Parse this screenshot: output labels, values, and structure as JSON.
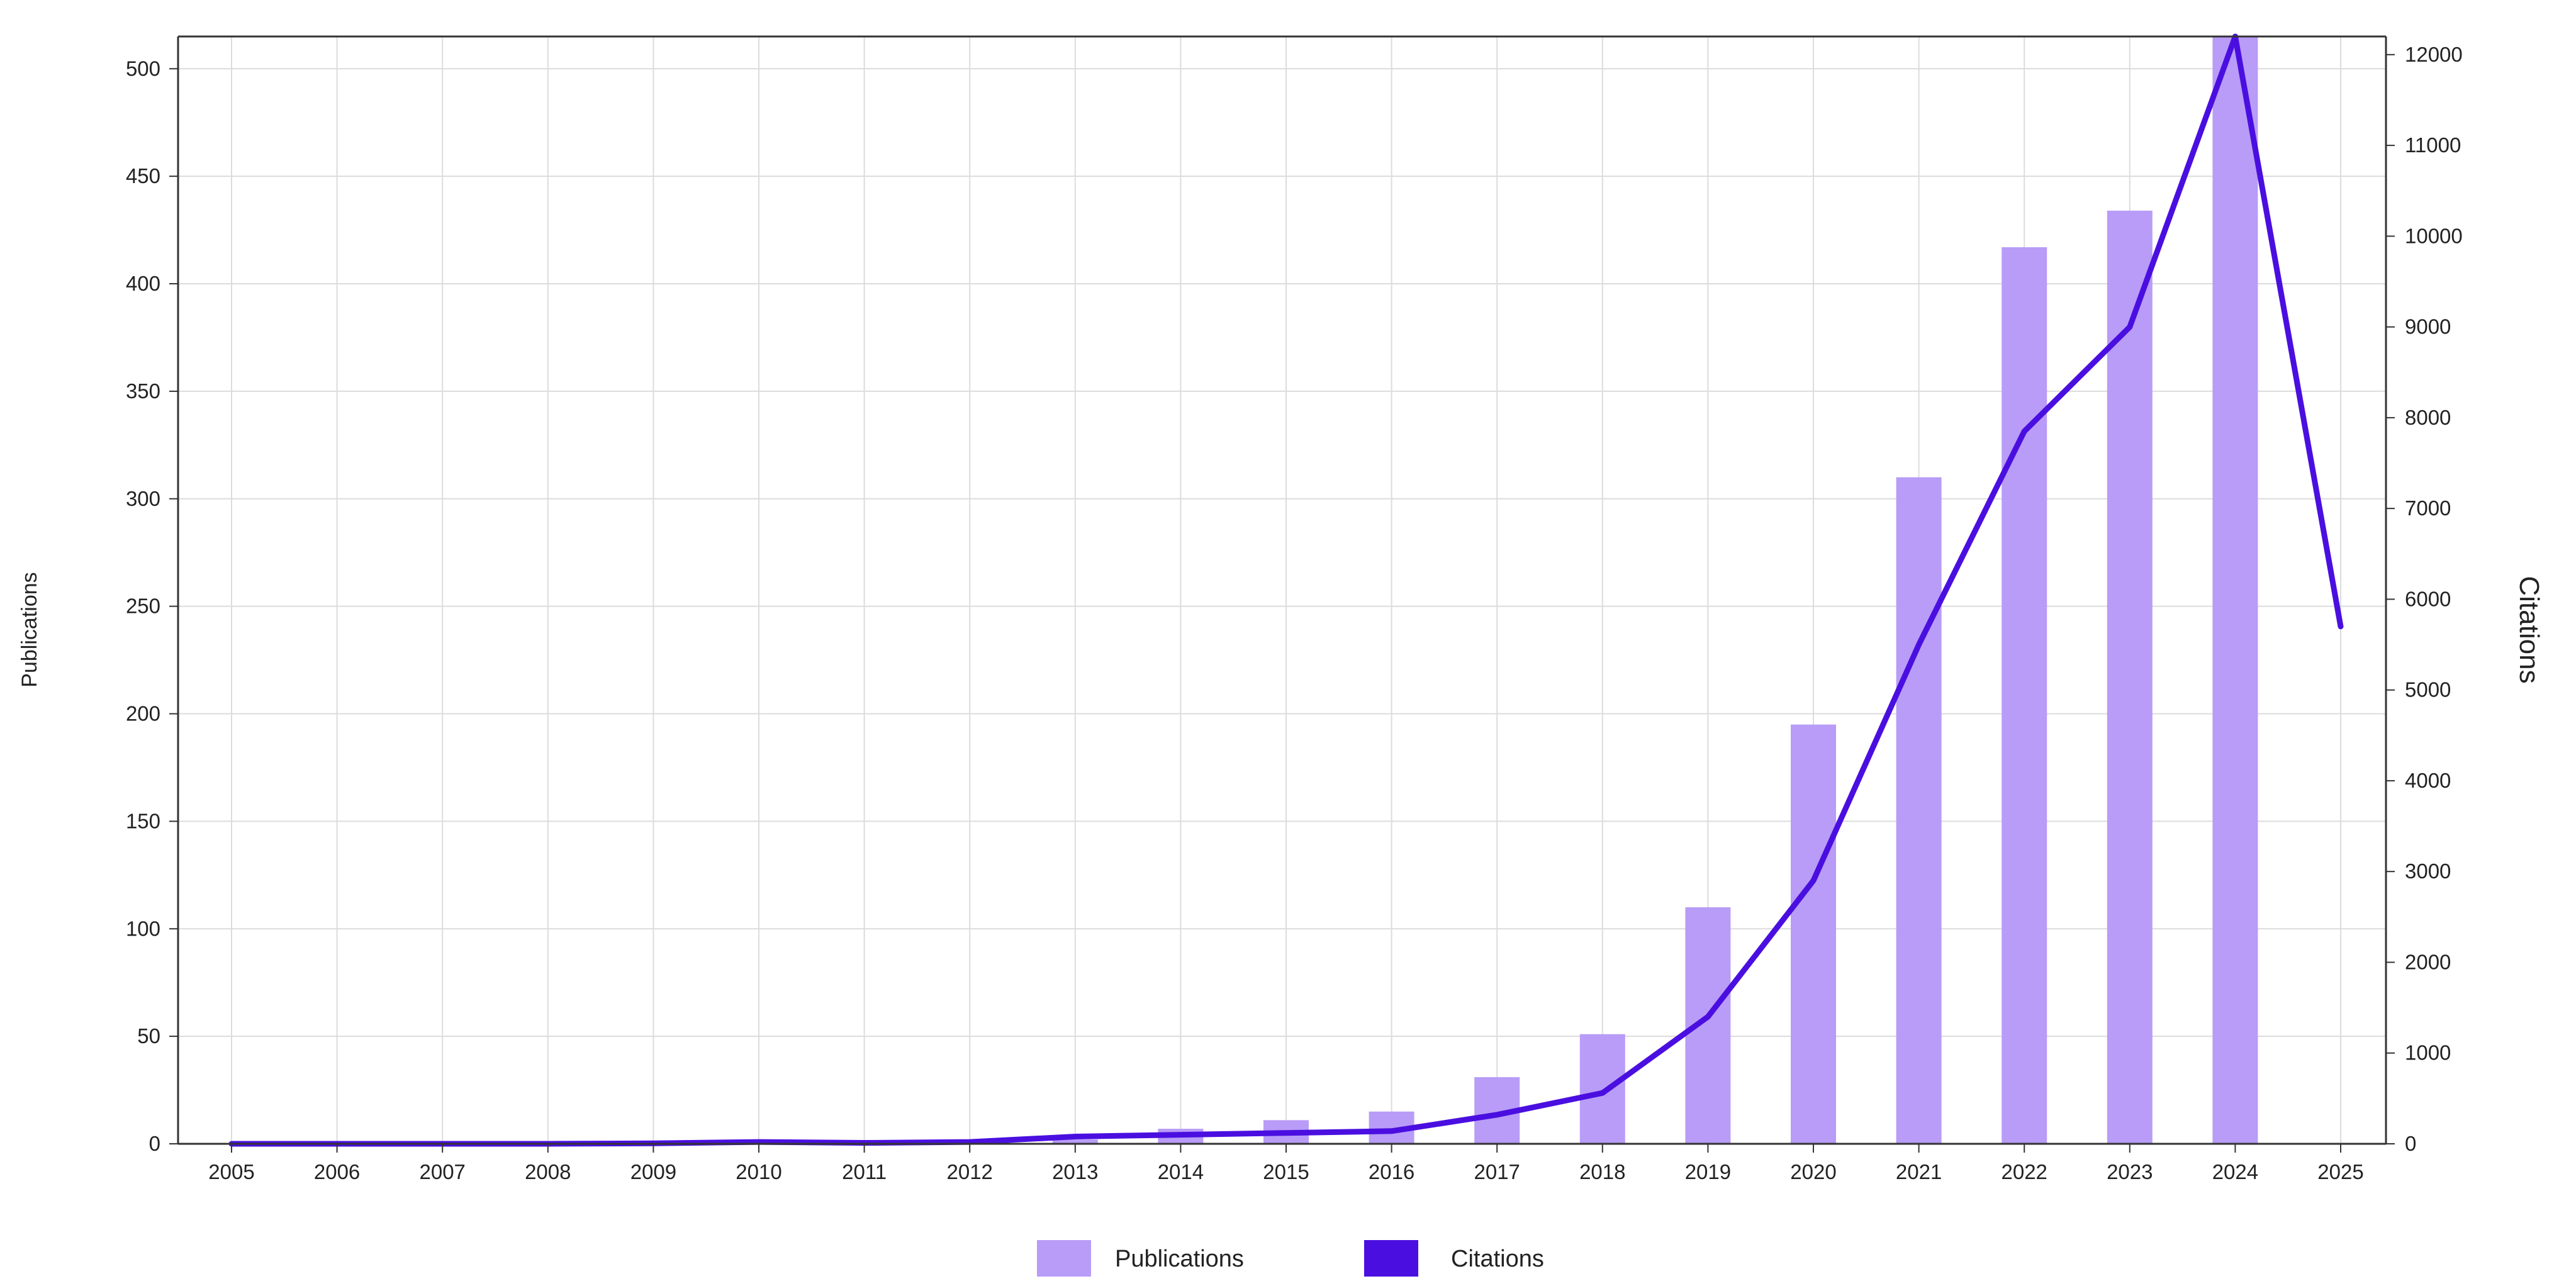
{
  "chart_data": {
    "type": "bar",
    "categories": [
      "2005",
      "2006",
      "2007",
      "2008",
      "2009",
      "2010",
      "2011",
      "2012",
      "2013",
      "2014",
      "2015",
      "2016",
      "2017",
      "2018",
      "2019",
      "2020",
      "2021",
      "2022",
      "2023",
      "2024",
      "2025"
    ],
    "series": [
      {
        "name": "Publications",
        "type": "bar",
        "axis": "left",
        "color": "#b89cf7",
        "values": [
          0,
          0,
          0,
          0,
          0,
          0,
          0,
          1,
          2,
          7,
          11,
          15,
          31,
          51,
          110,
          195,
          310,
          417,
          434,
          515,
          0
        ]
      },
      {
        "name": "Citations",
        "type": "line",
        "axis": "right",
        "color": "#4a0fe0",
        "values": [
          0,
          0,
          0,
          0,
          5,
          20,
          10,
          20,
          80,
          100,
          120,
          140,
          320,
          560,
          1400,
          2900,
          5500,
          7850,
          9000,
          12200,
          5700
        ]
      }
    ],
    "xlabel": "",
    "ylabel": "Publications",
    "y2label": "Citations",
    "ylim": [
      0,
      515
    ],
    "y2lim": [
      0,
      12200
    ],
    "yticks": [
      0,
      50,
      100,
      150,
      200,
      250,
      300,
      350,
      400,
      450,
      500
    ],
    "y2ticks": [
      0,
      1000,
      2000,
      3000,
      4000,
      5000,
      6000,
      7000,
      8000,
      9000,
      10000,
      11000,
      12000
    ],
    "grid": true,
    "legend": "bottom-center"
  }
}
